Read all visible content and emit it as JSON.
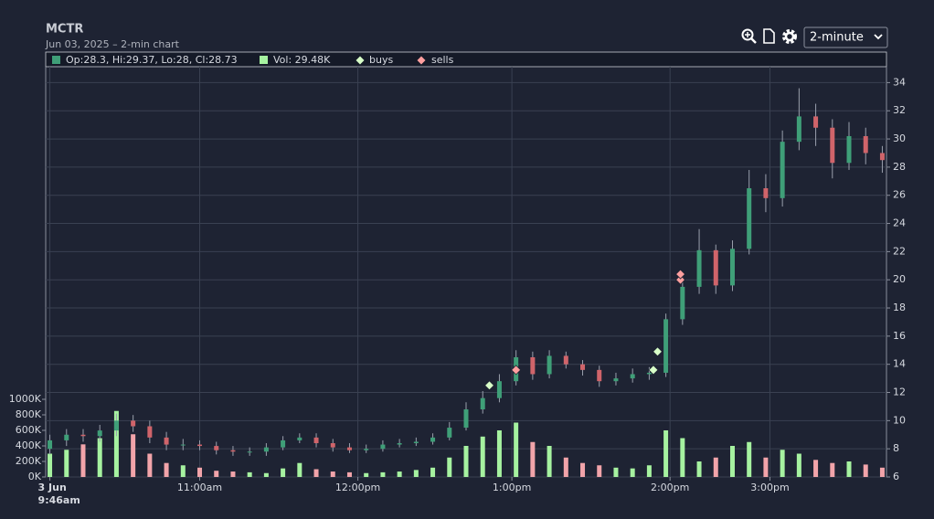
{
  "chart_data": {
    "type": "candlestick",
    "title": "MCTR",
    "subtitle": "Jun 03, 2025 – 2-min chart",
    "interval": "2-minute",
    "legend": {
      "ohlc": "Op:28.3, Hi:29.37, Lo:28, Cl:28.73",
      "volume": "Vol: 29.48K",
      "buys": "buys",
      "sells": "sells"
    },
    "up_color": "#3f9f78",
    "down_color": "#d0646a",
    "volume_up_color": "#a6f2a0",
    "volume_down_color": "#f2a4aa",
    "buy_color": "#d8ffc8",
    "sell_color": "#ff9f9f",
    "grid": true,
    "x": [
      0,
      4,
      8,
      12,
      16,
      20,
      24,
      28,
      32,
      36,
      40,
      44,
      48,
      52,
      56,
      60,
      64,
      68,
      72,
      76,
      80,
      84,
      88,
      92,
      96,
      100,
      104,
      108,
      112,
      116,
      120,
      124,
      128,
      132,
      136,
      140,
      144,
      148,
      152,
      156,
      160,
      164,
      168,
      172,
      176,
      180,
      184,
      188,
      192,
      196,
      200
    ],
    "xlim": [
      -1,
      201
    ],
    "xticks": [
      {
        "value": 0,
        "label": "3 Jun",
        "sublabel": "9:46am"
      },
      {
        "value": 36,
        "label": "11:00am"
      },
      {
        "value": 74,
        "label": "12:00pm"
      },
      {
        "value": 111,
        "label": "1:00pm"
      },
      {
        "value": 149,
        "label": "2:00pm"
      },
      {
        "value": 173,
        "label": "3:00pm"
      }
    ],
    "ylim": [
      6,
      35
    ],
    "yticks": [
      6,
      8,
      10,
      12,
      14,
      16,
      18,
      20,
      22,
      24,
      26,
      28,
      30,
      32,
      34
    ],
    "volume_ylim": [
      0,
      1000
    ],
    "volume_ticks": [
      {
        "value": 0,
        "label": "0K"
      },
      {
        "value": 200,
        "label": "200K"
      },
      {
        "value": 400,
        "label": "400K"
      },
      {
        "value": 600,
        "label": "600K"
      },
      {
        "value": 800,
        "label": "800K"
      },
      {
        "value": 1000,
        "label": "1000K"
      }
    ],
    "open": [
      8.0,
      8.6,
      9.0,
      8.9,
      9.3,
      10.0,
      9.6,
      8.8,
      8.3,
      8.3,
      8.2,
      7.9,
      7.8,
      7.8,
      8.1,
      8.6,
      8.8,
      8.4,
      8.1,
      7.9,
      8.0,
      8.3,
      8.4,
      8.5,
      8.8,
      9.5,
      10.8,
      11.6,
      12.8,
      14.5,
      13.3,
      14.6,
      14.0,
      13.6,
      12.8,
      13.0,
      13.3,
      13.4,
      17.2,
      19.5,
      22.1,
      19.6,
      22.2,
      26.5,
      25.8,
      29.8,
      31.6,
      30.8,
      28.3,
      30.2,
      29.0
    ],
    "high": [
      9.0,
      9.4,
      9.4,
      9.7,
      10.5,
      10.4,
      10.0,
      9.2,
      8.7,
      8.6,
      8.5,
      8.2,
      8.1,
      8.4,
      8.9,
      9.1,
      9.1,
      8.7,
      8.4,
      8.3,
      8.6,
      8.7,
      8.8,
      9.1,
      9.9,
      11.3,
      12.1,
      13.3,
      15.0,
      14.9,
      15.0,
      14.9,
      14.3,
      13.9,
      13.4,
      13.7,
      13.8,
      17.6,
      20.3,
      23.6,
      22.5,
      22.8,
      27.8,
      27.5,
      30.6,
      33.6,
      32.5,
      31.4,
      31.2,
      30.8,
      29.5
    ],
    "low": [
      7.6,
      8.2,
      8.5,
      8.5,
      8.9,
      9.2,
      8.4,
      7.9,
      7.9,
      7.9,
      7.6,
      7.5,
      7.5,
      7.5,
      7.9,
      8.4,
      8.1,
      7.8,
      7.7,
      7.7,
      7.8,
      8.1,
      8.2,
      8.3,
      8.6,
      9.3,
      10.5,
      11.3,
      12.5,
      12.9,
      13.0,
      13.7,
      13.2,
      12.4,
      12.5,
      12.7,
      12.9,
      13.1,
      16.8,
      19.0,
      19.0,
      19.2,
      21.8,
      24.8,
      25.2,
      29.2,
      29.5,
      27.2,
      27.8,
      28.2,
      27.6
    ],
    "close": [
      8.6,
      9.0,
      8.9,
      9.3,
      10.0,
      9.6,
      8.8,
      8.3,
      8.3,
      8.2,
      7.9,
      7.8,
      7.8,
      8.1,
      8.6,
      8.8,
      8.4,
      8.1,
      7.9,
      8.0,
      8.3,
      8.4,
      8.5,
      8.8,
      9.5,
      10.8,
      11.6,
      12.8,
      14.5,
      13.3,
      14.6,
      14.0,
      13.6,
      12.8,
      13.0,
      13.3,
      13.4,
      17.2,
      19.5,
      22.1,
      19.6,
      22.2,
      26.5,
      25.8,
      29.8,
      31.6,
      30.8,
      28.3,
      30.2,
      29.0,
      28.5
    ],
    "volume": [
      300,
      350,
      420,
      500,
      850,
      550,
      300,
      180,
      150,
      120,
      80,
      70,
      60,
      50,
      110,
      180,
      100,
      70,
      60,
      50,
      60,
      70,
      90,
      120,
      250,
      400,
      520,
      600,
      700,
      450,
      400,
      250,
      180,
      150,
      120,
      110,
      150,
      600,
      500,
      200,
      250,
      400,
      450,
      250,
      350,
      300,
      220,
      180,
      200,
      160,
      120
    ],
    "buys": {
      "x": [
        105.6,
        145,
        146
      ],
      "y": [
        12.5,
        13.6,
        14.9
      ]
    },
    "sells": {
      "x": [
        112,
        151.5,
        151.5
      ],
      "y": [
        13.6,
        20.0,
        20.4
      ]
    }
  }
}
